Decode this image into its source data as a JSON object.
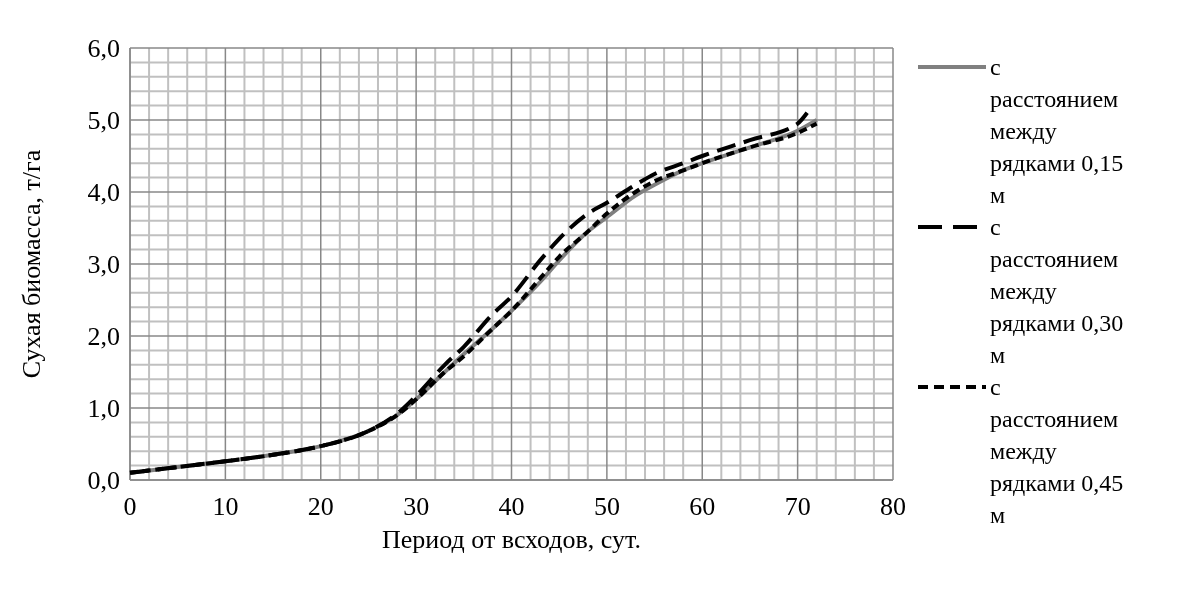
{
  "chart_data": {
    "type": "line",
    "xlabel": "Период от всходов, сут.",
    "ylabel": "Сухая биомасса, т/га",
    "x": [
      0,
      5,
      10,
      15,
      20,
      25,
      28,
      30,
      33,
      35,
      38,
      40,
      43,
      45,
      48,
      50,
      53,
      55,
      58,
      60,
      65,
      70,
      72
    ],
    "series": [
      {
        "name": "с расстоянием между рядками 0,15 м",
        "color": "#808080",
        "line_style": "solid",
        "values": [
          0.1,
          0.18,
          0.26,
          0.35,
          0.47,
          0.68,
          0.9,
          1.12,
          1.5,
          1.75,
          2.1,
          2.35,
          2.75,
          3.05,
          3.45,
          3.65,
          3.95,
          4.1,
          4.3,
          4.4,
          4.62,
          4.85,
          5.0
        ]
      },
      {
        "name": "с расстоянием между рядками 0,30 м",
        "color": "#000000",
        "line_style": "dashed",
        "x": [
          0,
          5,
          10,
          15,
          20,
          25,
          28,
          30,
          33,
          35,
          38,
          40,
          43,
          45,
          48,
          50,
          53,
          55,
          58,
          60,
          65,
          70,
          71
        ],
        "values": [
          0.1,
          0.18,
          0.26,
          0.35,
          0.47,
          0.68,
          0.92,
          1.17,
          1.6,
          1.85,
          2.3,
          2.55,
          3.05,
          3.35,
          3.7,
          3.85,
          4.1,
          4.25,
          4.4,
          4.5,
          4.72,
          4.95,
          5.1
        ]
      },
      {
        "name": "с расстоянием между рядками 0,45 м",
        "color": "#000000",
        "line_style": "dotted",
        "values": [
          0.1,
          0.18,
          0.26,
          0.35,
          0.47,
          0.68,
          0.9,
          1.12,
          1.5,
          1.72,
          2.1,
          2.35,
          2.8,
          3.1,
          3.45,
          3.7,
          4.0,
          4.15,
          4.3,
          4.4,
          4.62,
          4.82,
          4.95
        ]
      }
    ],
    "xlim": [
      0,
      80
    ],
    "xticks": [
      0,
      10,
      20,
      30,
      40,
      50,
      60,
      70,
      80
    ],
    "ylim": [
      0,
      6
    ],
    "yticks": [
      {
        "value": 0,
        "label": "0,0"
      },
      {
        "value": 1,
        "label": "1,0"
      },
      {
        "value": 2,
        "label": "2,0"
      },
      {
        "value": 3,
        "label": "3,0"
      },
      {
        "value": 4,
        "label": "4,0"
      },
      {
        "value": 5,
        "label": "5,0"
      },
      {
        "value": 6,
        "label": "6,0"
      }
    ],
    "grid": true,
    "legend": "right",
    "marker": "none"
  }
}
